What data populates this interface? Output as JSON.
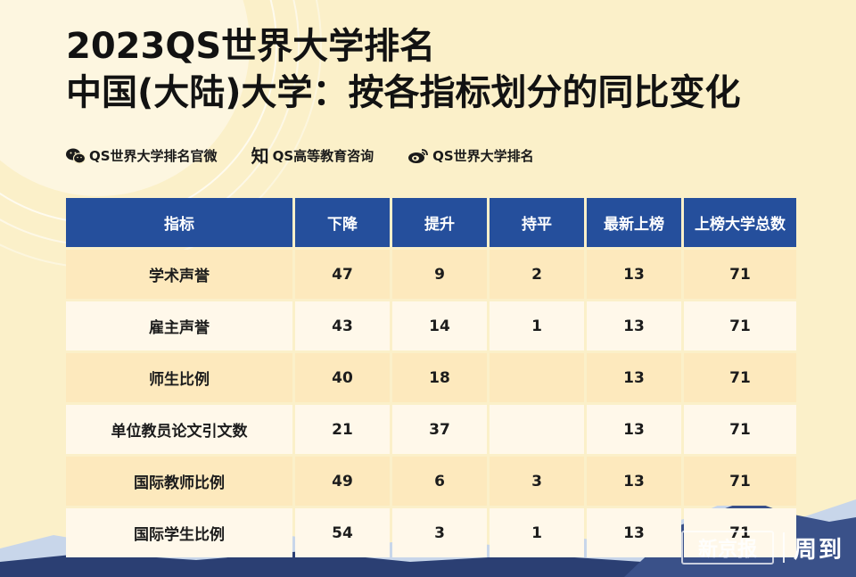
{
  "title": {
    "line1": "2023QS世界大学排名",
    "line2": "中国(大陆)大学：按各指标划分的同比变化"
  },
  "social": [
    {
      "icon": "wechat-icon",
      "label": "QS世界大学排名官微"
    },
    {
      "icon": "zhihu-icon",
      "label": "QS高等教育咨询",
      "glyph": "知"
    },
    {
      "icon": "weibo-icon",
      "label": "QS世界大学排名"
    }
  ],
  "table": {
    "headers": [
      "指标",
      "下降",
      "提升",
      "持平",
      "最新上榜",
      "上榜大学总数"
    ],
    "rows": [
      [
        "学术声誉",
        "47",
        "9",
        "2",
        "13",
        "71"
      ],
      [
        "雇主声誉",
        "43",
        "14",
        "1",
        "13",
        "71"
      ],
      [
        "师生比例",
        "40",
        "18",
        "",
        "13",
        "71"
      ],
      [
        "单位教员论文引文数",
        "21",
        "37",
        "",
        "13",
        "71"
      ],
      [
        "国际教师比例",
        "49",
        "6",
        "3",
        "13",
        "71"
      ],
      [
        "国际学生比例",
        "54",
        "3",
        "1",
        "13",
        "71"
      ]
    ]
  },
  "watermark": {
    "logo_text": "新京报",
    "text": "周到"
  },
  "colors": {
    "background": "#fbf0c9",
    "header_blue": "#254f9c",
    "row_odd": "#fde9bd",
    "row_even": "#fff8ea"
  }
}
